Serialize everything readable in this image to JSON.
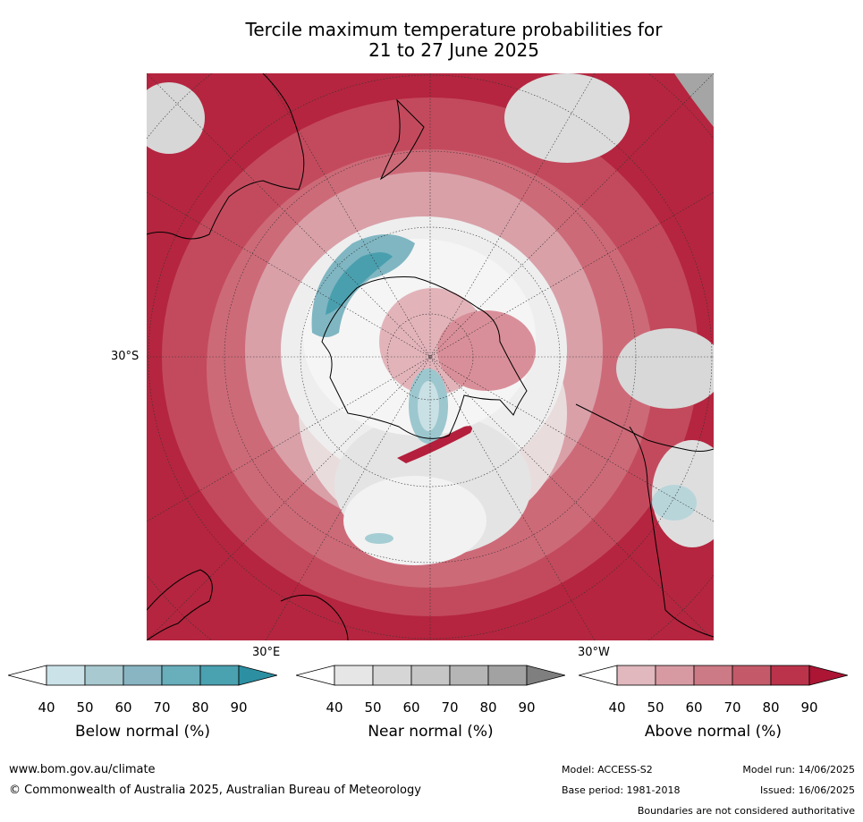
{
  "title": {
    "line1": "Tercile maximum temperature probabilities for",
    "line2": "21 to 27 June 2025"
  },
  "map": {
    "lat_label": "30°S",
    "lon_labels": [
      "30°E",
      "30°W"
    ]
  },
  "legends": [
    {
      "caption": "Below normal (%)",
      "ticks": [
        "40",
        "50",
        "60",
        "70",
        "80",
        "90"
      ],
      "colors": [
        "#ffffff",
        "#cbe3e8",
        "#a7c9cf",
        "#88b5c1",
        "#68aebb",
        "#4aa1b0",
        "#2d8fa2"
      ]
    },
    {
      "caption": "Near normal (%)",
      "ticks": [
        "40",
        "50",
        "60",
        "70",
        "80",
        "90"
      ],
      "colors": [
        "#ffffff",
        "#e6e6e6",
        "#d6d6d6",
        "#c6c6c6",
        "#b5b5b5",
        "#a2a2a2",
        "#7f7f7f"
      ]
    },
    {
      "caption": "Above normal (%)",
      "ticks": [
        "40",
        "50",
        "60",
        "70",
        "80",
        "90"
      ],
      "colors": [
        "#ffffff",
        "#e0b8bd",
        "#d79aa3",
        "#cc7a85",
        "#c45a69",
        "#bb334b",
        "#ac1534"
      ]
    }
  ],
  "footer": {
    "website": "www.bom.gov.au/climate",
    "copyright": "© Commonwealth of Australia 2025, Australian Bureau of Meteorology",
    "model": "Model: ACCESS-S2",
    "base_period": "Base period: 1981-2018",
    "model_run": "Model run: 14/06/2025",
    "issued": "Issued: 16/06/2025",
    "disclaimer": "Boundaries are not considered authoritative"
  }
}
